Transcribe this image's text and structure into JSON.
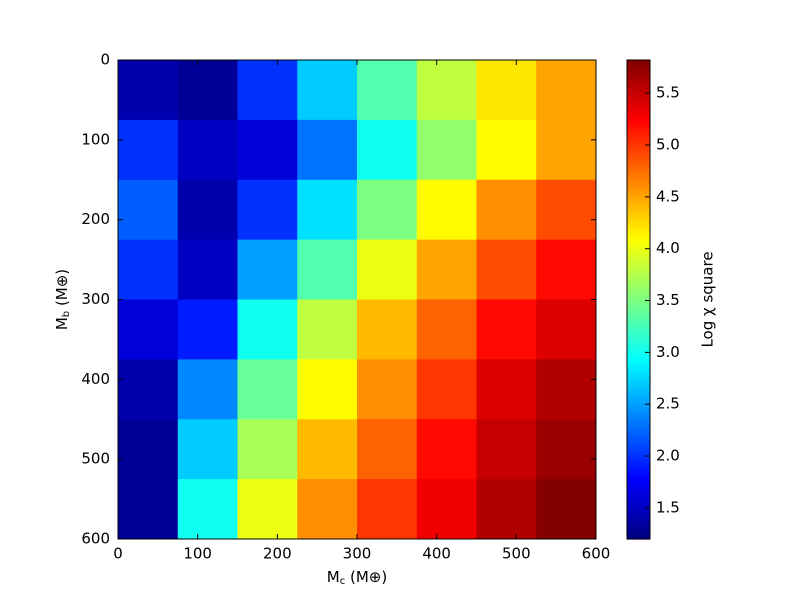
{
  "chart_data": {
    "type": "heatmap",
    "xlabel": [
      "M",
      "c",
      " (M⊕)"
    ],
    "ylabel": [
      "M",
      "b",
      " (M⊕)"
    ],
    "colorbar_label": "Log χ square",
    "colormap": "jet",
    "x": [
      37.5,
      112.5,
      187.5,
      262.5,
      337.5,
      412.5,
      487.5,
      562.5
    ],
    "y": [
      37.5,
      112.5,
      187.5,
      262.5,
      337.5,
      412.5,
      487.5,
      562.5
    ],
    "z": [
      [
        1.4,
        1.3,
        2.0,
        2.7,
        3.3,
        3.8,
        4.2,
        4.5
      ],
      [
        2.0,
        1.5,
        1.6,
        2.3,
        3.0,
        3.6,
        4.1,
        4.5
      ],
      [
        2.2,
        1.4,
        2.0,
        2.8,
        3.5,
        4.1,
        4.6,
        4.9
      ],
      [
        2.0,
        1.5,
        2.5,
        3.3,
        4.0,
        4.5,
        4.9,
        5.2
      ],
      [
        1.6,
        1.9,
        3.0,
        3.8,
        4.4,
        4.8,
        5.2,
        5.4
      ],
      [
        1.4,
        2.4,
        3.4,
        4.1,
        4.6,
        5.0,
        5.4,
        5.6
      ],
      [
        1.3,
        2.7,
        3.7,
        4.4,
        4.8,
        5.2,
        5.5,
        5.7
      ],
      [
        1.3,
        3.0,
        4.0,
        4.6,
        5.0,
        5.3,
        5.6,
        5.8
      ]
    ],
    "xlim": [
      0,
      600
    ],
    "xticks": [
      0,
      100,
      200,
      300,
      400,
      500,
      600
    ],
    "ylim": [
      600,
      0
    ],
    "yticks": [
      0,
      100,
      200,
      300,
      400,
      500,
      600
    ],
    "zlim": [
      1.2,
      5.82
    ],
    "zticks": [
      1.5,
      {
        "value": 2,
        "label": "2.0"
      },
      2.5,
      {
        "value": 3,
        "label": "3.0"
      },
      3.5,
      {
        "value": 4,
        "label": "4.0"
      },
      4.5,
      {
        "value": 5,
        "label": "5.0"
      },
      5.5
    ]
  }
}
